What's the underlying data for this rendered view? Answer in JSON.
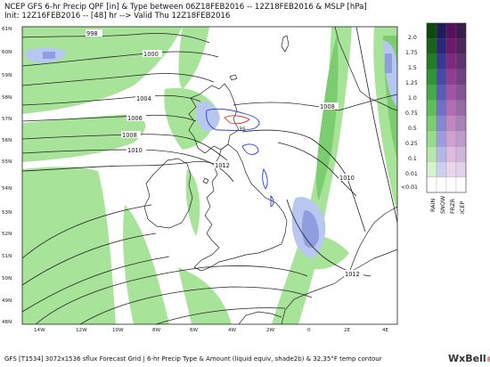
{
  "header": {
    "line1": "NCEP GFS 6-hr Precip QPF [in] & Type between 06Z18FEB2016 -- 12Z18FEB2016 & MSLP [hPa]",
    "line2": "Init: 12Z16FEB2016 -- [48] hr --> Valid Thu 12Z18FEB2016"
  },
  "map": {
    "lat_labels": [
      "61N",
      "60N",
      "59N",
      "58N",
      "57N",
      "56N",
      "55N",
      "54N",
      "53N",
      "52N",
      "51N",
      "50N",
      "49N",
      "48N"
    ],
    "lon_labels": [
      "14W",
      "12W",
      "10W",
      "8W",
      "6W",
      "4W",
      "2W",
      "0",
      "2E",
      "4E"
    ],
    "isobar_labels": [
      {
        "id": "998",
        "text": "998"
      },
      {
        "id": "1000",
        "text": "1000"
      },
      {
        "id": "1004",
        "text": "1004"
      },
      {
        "id": "1006",
        "text": "1006"
      },
      {
        "id": "1008w",
        "text": "1008"
      },
      {
        "id": "1010w",
        "text": "1010"
      },
      {
        "id": "1012w",
        "text": "1012"
      },
      {
        "id": "1008e",
        "text": "1008"
      },
      {
        "id": "1010e",
        "text": "1010"
      },
      {
        "id": "1012s",
        "text": "1012"
      }
    ],
    "temp_contour_label": "35"
  },
  "legend": {
    "values": [
      "2.0",
      "1.75",
      "1.5",
      "1.25",
      "1.0",
      "0.75",
      "0.5",
      "0.25",
      "0.1",
      "0.01",
      "<0.01"
    ],
    "columns": [
      "RAIN",
      "SNOW",
      "FRZR",
      "ICEP"
    ],
    "rain_colors": [
      "#0b4a0b",
      "#14651a",
      "#1f7d24",
      "#2e9634",
      "#45ab47",
      "#5fbe5a",
      "#7bce6f",
      "#98dc8b",
      "#b6e8aa",
      "#d5f3cc",
      "#ffffff"
    ],
    "snow_colors": [
      "#201c5c",
      "#2c2878",
      "#3a3792",
      "#4a49a6",
      "#5c5cb8",
      "#7070c6",
      "#8686d2",
      "#9d9ddd",
      "#b4b6e6",
      "#cbd0f0",
      "#ffffff"
    ],
    "frzr_colors": [
      "#5a0f5a",
      "#6d1a6d",
      "#7f2a80",
      "#913d92",
      "#a254a3",
      "#b36db4",
      "#c387c4",
      "#d2a1d2",
      "#e0badf",
      "#ecd4ec",
      "#ffffff"
    ],
    "icep_colors": [
      "#3c1a4a",
      "#4d255c",
      "#5f326f",
      "#714282",
      "#835594",
      "#966ba6",
      "#a983b8",
      "#bc9cca",
      "#cfb6db",
      "#e2d1ea",
      "#ffffff"
    ]
  },
  "footer": {
    "text": "GFS [T1534] 3072x1536 sflux Forecast Grid | 6-hr Precip Type & Amount (liquid equiv, shade2b) & 32,35°F temp contour",
    "brand": "WxBell",
    "brand_mark": "®"
  },
  "colors": {
    "rain_light": "#a8e39a",
    "rain_mid": "#7ccc70",
    "rain_dark": "#5cbc5c",
    "snow_light": "#b7c7ef",
    "snow_mid": "#8e9ede",
    "snow_dark": "#6f78c6"
  }
}
